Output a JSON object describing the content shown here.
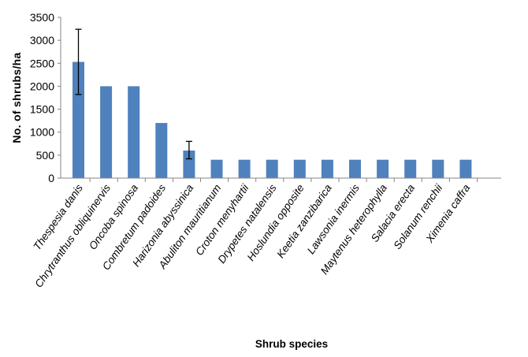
{
  "chart_data": {
    "type": "bar",
    "categories": [
      "Thespesia danis",
      "Chrytranthus obliquinervis",
      "Oncoba spinosa",
      "Combretum padoides",
      "Harizonia abyssinica",
      "Abuliton mauritianum",
      "Croton menyhartii",
      "Drypetes natalensis",
      "Hoslundia opposite",
      "Keetia zanzibarica",
      "Lawsonia inermis",
      "Maytenus heterophylla",
      "Salacia erecta",
      "Solanum renchii",
      "Ximenia caffra"
    ],
    "values": [
      2530,
      2000,
      2000,
      1200,
      600,
      400,
      400,
      400,
      400,
      400,
      400,
      400,
      400,
      400,
      400
    ],
    "error_bars": [
      {
        "category": "Thespesia danis",
        "low": 1820,
        "high": 3240
      },
      {
        "category": "Harizonia abyssinica",
        "low": 420,
        "high": 800
      }
    ],
    "title": "",
    "xlabel": "Shrub species",
    "ylabel": "No. of shrubs/ha",
    "ylim": [
      0,
      3500
    ],
    "yticks": [
      "0",
      "500",
      "1000",
      "1500",
      "2000",
      "2500",
      "3000",
      "3500"
    ],
    "grid": false,
    "legend": "none",
    "bar_color": "#4f81bd"
  }
}
